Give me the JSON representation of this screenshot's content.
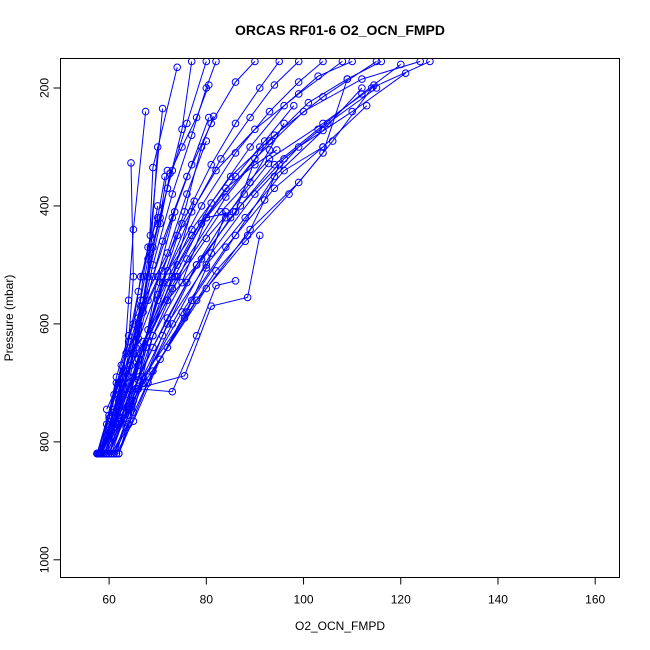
{
  "chart_data": {
    "type": "scatter",
    "title": "ORCAS RF01-6 O2_OCN_FMPD",
    "xlabel": "O2_OCN_FMPD",
    "ylabel": "Pressure (mbar)",
    "xlim": [
      50,
      165
    ],
    "ylim": [
      1030,
      150
    ],
    "x_ticks": [
      60,
      80,
      100,
      120,
      140,
      160
    ],
    "y_ticks": [
      200,
      400,
      600,
      800,
      1000
    ],
    "y_reversed": true,
    "grid": false,
    "legend": "none",
    "series_color": "#0000ff",
    "marker": "open-circle",
    "series": [
      {
        "x": [
          57.5,
          59.5,
          61,
          63.5,
          66,
          68,
          70,
          73,
          76,
          80
        ],
        "y": [
          820,
          790,
          745,
          680,
          600,
          520,
          430,
          340,
          260,
          155
        ]
      },
      {
        "x": [
          57.8,
          60,
          62,
          65,
          67,
          69,
          72,
          75,
          77
        ],
        "y": [
          820,
          785,
          730,
          650,
          560,
          470,
          370,
          270,
          155
        ]
      },
      {
        "x": [
          58,
          60.5,
          63,
          66,
          69,
          73,
          77,
          80,
          82
        ],
        "y": [
          820,
          780,
          710,
          610,
          500,
          380,
          280,
          200,
          155
        ]
      },
      {
        "x": [
          58.5,
          61,
          64,
          67,
          71,
          76,
          81,
          86,
          90
        ],
        "y": [
          820,
          775,
          690,
          580,
          460,
          350,
          260,
          190,
          155
        ]
      },
      {
        "x": [
          59,
          62,
          66,
          70,
          75,
          81,
          86,
          91,
          95
        ],
        "y": [
          820,
          770,
          670,
          550,
          430,
          330,
          260,
          200,
          155
        ]
      },
      {
        "x": [
          59.5,
          62.5,
          66.5,
          71,
          77,
          83,
          89,
          94,
          99
        ],
        "y": [
          820,
          765,
          650,
          530,
          410,
          320,
          250,
          195,
          155
        ]
      },
      {
        "x": [
          60,
          63,
          67,
          72,
          79,
          86,
          93,
          99,
          104
        ],
        "y": [
          820,
          760,
          640,
          510,
          400,
          310,
          240,
          190,
          155
        ]
      },
      {
        "x": [
          61,
          64,
          68,
          74,
          81,
          89,
          96,
          103,
          110
        ],
        "y": [
          820,
          755,
          630,
          500,
          395,
          300,
          230,
          180,
          155
        ]
      },
      {
        "x": [
          62,
          65,
          69,
          76,
          84,
          93,
          101,
          109,
          116
        ],
        "y": [
          820,
          750,
          620,
          490,
          385,
          290,
          225,
          185,
          155
        ]
      },
      {
        "x": [
          58,
          60,
          64,
          68,
          74,
          82,
          90,
          99,
          108
        ],
        "y": [
          820,
          795,
          700,
          560,
          450,
          340,
          270,
          210,
          155
        ]
      },
      {
        "x": [
          57.8,
          60.5,
          65,
          70,
          77,
          85,
          94,
          104,
          115
        ],
        "y": [
          820,
          790,
          690,
          560,
          440,
          350,
          280,
          215,
          155
        ]
      },
      {
        "x": [
          58.2,
          61.5,
          66,
          72,
          80,
          90,
          100,
          112,
          124
        ],
        "y": [
          820,
          770,
          660,
          530,
          420,
          320,
          240,
          185,
          155
        ]
      },
      {
        "x": [
          58.5,
          62,
          67,
          74,
          83,
          93,
          104,
          114,
          126
        ],
        "y": [
          820,
          760,
          630,
          520,
          410,
          320,
          260,
          200,
          155
        ]
      },
      {
        "x": [
          59,
          63,
          69,
          76,
          85,
          94,
          103,
          112,
          120
        ],
        "y": [
          820,
          750,
          640,
          530,
          420,
          330,
          270,
          210,
          160
        ]
      },
      {
        "x": [
          59.5,
          64,
          71,
          78,
          87,
          96,
          105,
          115
        ],
        "y": [
          820,
          740,
          620,
          500,
          400,
          320,
          260,
          200
        ]
      },
      {
        "x": [
          60,
          65,
          73,
          81,
          90,
          99,
          110,
          121
        ],
        "y": [
          820,
          730,
          600,
          480,
          380,
          300,
          240,
          175
        ]
      },
      {
        "x": [
          61,
          66,
          75,
          84,
          94,
          104,
          113
        ],
        "y": [
          820,
          710,
          580,
          470,
          370,
          300,
          230
        ]
      },
      {
        "x": [
          62,
          68,
          77,
          86,
          94,
          104,
          112
        ],
        "y": [
          820,
          700,
          560,
          450,
          350,
          272,
          200
        ]
      },
      {
        "x": [
          60,
          64,
          68,
          73.5,
          79,
          86,
          92,
          98
        ],
        "y": [
          820,
          720,
          610,
          520,
          430,
          350,
          290,
          230
        ]
      },
      {
        "x": [
          60.5,
          66,
          72,
          78,
          84,
          89,
          93,
          96
        ],
        "y": [
          820,
          690,
          590,
          500,
          420,
          360,
          305,
          260
        ]
      },
      {
        "x": [
          61,
          67,
          75.5,
          82,
          88.5,
          92,
          95
        ],
        "y": [
          820,
          690,
          590,
          510,
          450,
          390,
          330
        ]
      },
      {
        "x": [
          58.5,
          64.5,
          72,
          79,
          86,
          91
        ],
        "y": [
          820,
          670,
          560,
          490,
          410,
          300
        ]
      },
      {
        "x": [
          59,
          66,
          73,
          80,
          87.8,
          92.8
        ],
        "y": [
          820,
          660,
          540,
          455,
          380,
          328
        ]
      },
      {
        "x": [
          59.5,
          65,
          70.5,
          77,
          84,
          90,
          94.5
        ],
        "y": [
          820,
          650,
          530,
          450,
          370,
          330,
          305
        ]
      },
      {
        "x": [
          57.5,
          61,
          65.5,
          69,
          73,
          77,
          80.5
        ],
        "y": [
          820,
          720,
          630,
          520,
          420,
          330,
          250
        ]
      },
      {
        "x": [
          57.8,
          61.5,
          66,
          71,
          75.5,
          79,
          81.5
        ],
        "y": [
          820,
          700,
          600,
          510,
          410,
          300,
          248
        ]
      },
      {
        "x": [
          58,
          62,
          66.5,
          72,
          76,
          80
        ],
        "y": [
          820,
          700,
          570,
          480,
          380,
          290
        ]
      },
      {
        "x": [
          58.2,
          62.5,
          67,
          70.5,
          72.5,
          75,
          78,
          80.5
        ],
        "y": [
          820,
          700,
          560,
          430,
          345,
          300,
          250,
          195
        ]
      },
      {
        "x": [
          58.5,
          61,
          63.5,
          66,
          68,
          70,
          71.5
        ],
        "y": [
          820,
          750,
          650,
          545,
          470,
          420,
          350
        ]
      },
      {
        "x": [
          58,
          60,
          62.5,
          65,
          66.5,
          68.5,
          70
        ],
        "y": [
          820,
          760,
          670,
          600,
          520,
          470,
          400
        ]
      },
      {
        "x": [
          57.5,
          59.5,
          61.5,
          64,
          66.5,
          68,
          70.5,
          72
        ],
        "y": [
          820,
          770,
          690,
          620,
          560,
          490,
          420,
          340
        ]
      },
      {
        "x": [
          57.8,
          60,
          63,
          65.5,
          67,
          68.5,
          70
        ],
        "y": [
          820,
          775,
          700,
          640,
          560,
          480,
          300
        ]
      },
      {
        "x": [
          58,
          60.5,
          62,
          64.5,
          66,
          67,
          68.5,
          71
        ],
        "y": [
          820,
          780,
          720,
          650,
          590,
          520,
          450,
          235
        ]
      },
      {
        "x": [
          58.2,
          61,
          63,
          64,
          65,
          67.5
        ],
        "y": [
          820,
          770,
          680,
          560,
          440,
          240
        ]
      },
      {
        "x": [
          59.5,
          63,
          66,
          68,
          69,
          74
        ],
        "y": [
          745,
          680,
          625,
          520,
          335,
          165
        ]
      },
      {
        "x": [
          60,
          62,
          64,
          65,
          64.5
        ],
        "y": [
          755,
          700,
          630,
          520,
          327
        ]
      },
      {
        "x": [
          58.5,
          61,
          66,
          70,
          73.5
        ],
        "y": [
          820,
          770,
          695,
          520,
          410
        ]
      },
      {
        "x": [
          59,
          62.5,
          67.5,
          73,
          77.5
        ],
        "y": [
          820,
          760,
          640,
          520,
          392
        ]
      },
      {
        "x": [
          60,
          64,
          69,
          75,
          80,
          85.5
        ],
        "y": [
          820,
          745,
          620,
          530,
          420,
          410
        ]
      },
      {
        "x": [
          62,
          66,
          73,
          78,
          82,
          86
        ],
        "y": [
          820,
          710,
          715,
          620,
          535,
          527
        ]
      },
      {
        "x": [
          61.5,
          65.5,
          75.5,
          81,
          88.5,
          91
        ],
        "y": [
          820,
          710,
          688,
          570,
          555,
          450
        ]
      },
      {
        "x": [
          60,
          64,
          68,
          72,
          76,
          80,
          84
        ],
        "y": [
          820,
          740,
          690,
          640,
          580,
          505,
          410
        ]
      },
      {
        "x": [
          60.5,
          63.5,
          67,
          72,
          80,
          88,
          96,
          104
        ],
        "y": [
          820,
          775,
          700,
          600,
          500,
          420,
          340,
          300
        ]
      },
      {
        "x": [
          61,
          64,
          69,
          78,
          88,
          97,
          104,
          109
        ],
        "y": [
          820,
          770,
          680,
          560,
          460,
          380,
          310,
          185
        ]
      },
      {
        "x": [
          61.5,
          65,
          70.5,
          80,
          89,
          99,
          106,
          114.5
        ],
        "y": [
          820,
          765,
          660,
          540,
          440,
          360,
          290,
          195
        ]
      }
    ]
  }
}
